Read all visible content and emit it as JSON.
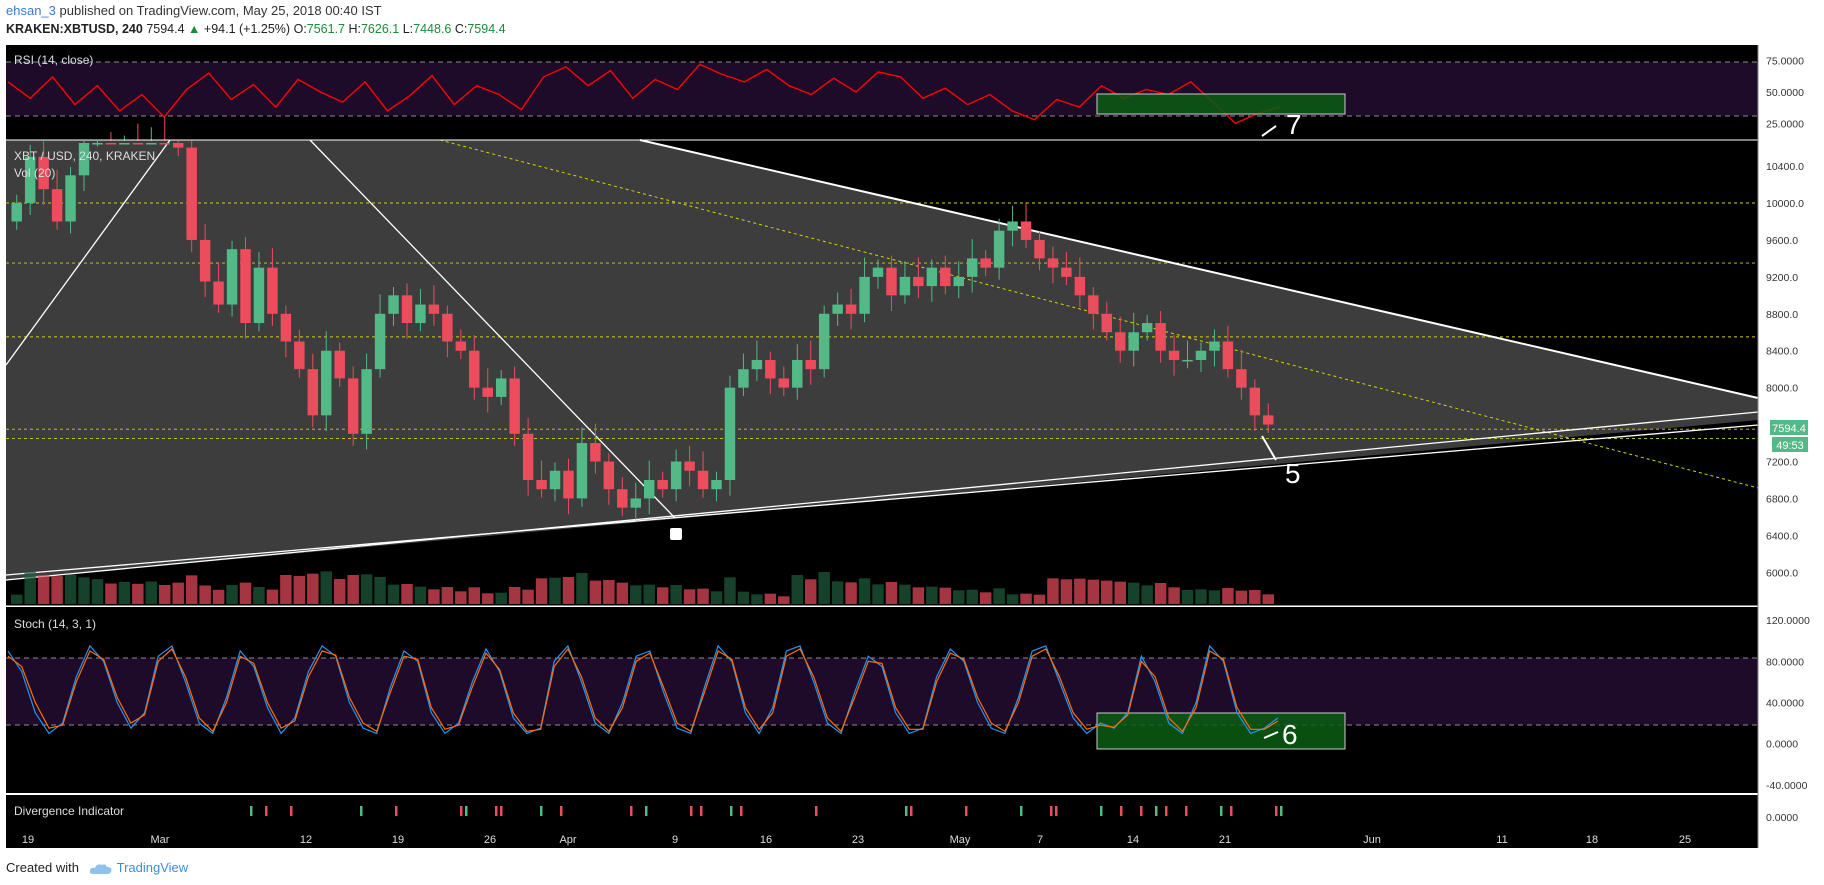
{
  "header": {
    "author": "ehsan_3",
    "published": "published on TradingView.com, May 25, 2018 00:40 IST",
    "symbol": "KRAKEN:XBTUSD, 240",
    "last": "7594.4",
    "change": "+94.1 (+1.25%)",
    "o_label": "O:",
    "o": "7561.7",
    "h_label": "H:",
    "h": "7626.1",
    "l_label": "L:",
    "l": "7448.6",
    "c_label": "C:",
    "c": "7594.4"
  },
  "panes": {
    "rsi_label": "RSI (14, close)",
    "main_label": "XBT / USD, 240, KRAKEN",
    "vol_label": "Vol (20)",
    "stoch_label": "Stoch (14, 3, 1)",
    "div_label": "Divergence Indicator"
  },
  "annotations": {
    "rsi": "7",
    "price": "5",
    "stoch": "6"
  },
  "price_tag": "7594.4",
  "countdown_tag": "49:53",
  "footer": {
    "created": "Created with",
    "brand": "TradingView"
  },
  "colors": {
    "background": "#000000",
    "up": "#53b987",
    "down": "#eb4d5c",
    "rsi_line": "#ff0000",
    "stoch_k": "#2196f3",
    "stoch_d": "#ff6d00",
    "zone": "#0b5d12",
    "tag": "#53b987"
  },
  "chart_data": [
    {
      "type": "line",
      "pane": "RSI (14, close)",
      "y_ticks": [
        "75.0000",
        "50.0000",
        "25.0000"
      ],
      "ylim": [
        15,
        85
      ],
      "bands": [
        70,
        30
      ],
      "series": [
        {
          "values": [
            58,
            45,
            62,
            40,
            55,
            35,
            48,
            30,
            52,
            65,
            44,
            56,
            38,
            60,
            50,
            42,
            58,
            35,
            47,
            63,
            40,
            55,
            48,
            36,
            62,
            70,
            55,
            67,
            45,
            60,
            52,
            72,
            64,
            58,
            68,
            55,
            48,
            61,
            50,
            66,
            62,
            45,
            53,
            40,
            48,
            35,
            28,
            44,
            38,
            55,
            45,
            52,
            48,
            58,
            42,
            25,
            33,
            38
          ]
        }
      ]
    },
    {
      "type": "candlestick",
      "pane": "XBT / USD, 240, KRAKEN",
      "x_ticks": [
        "19",
        "Mar",
        "12",
        "19",
        "26",
        "Apr",
        "9",
        "16",
        "23",
        "May",
        "7",
        "14",
        "21",
        "Jun",
        "11",
        "18",
        "25"
      ],
      "y_ticks": [
        "10400.0",
        "10000.0",
        "9600.0",
        "9200.0",
        "8800.0",
        "8400.0",
        "8000.0",
        "7200.0",
        "6800.0",
        "6400.0",
        "6000.0"
      ],
      "ylim": [
        5700,
        10650
      ],
      "closes": [
        10000,
        10500,
        10150,
        9800,
        10300,
        10700,
        11050,
        10900,
        11200,
        10950,
        11400,
        11100,
        10600,
        9600,
        9150,
        8900,
        9500,
        8700,
        9300,
        8800,
        8500,
        8200,
        7700,
        8400,
        8100,
        7500,
        8200,
        8800,
        9000,
        8700,
        8900,
        8800,
        8500,
        8400,
        8000,
        7900,
        8100,
        7500,
        7000,
        6900,
        7100,
        6800,
        7400,
        7200,
        6900,
        6700,
        6800,
        7000,
        6900,
        7200,
        7100,
        6900,
        7000,
        8000,
        8200,
        8300,
        8100,
        8000,
        8300,
        8200,
        8800,
        8900,
        8800,
        9200,
        9300,
        9000,
        9200,
        9100,
        9300,
        9100,
        9200,
        9400,
        9300,
        9700,
        9800,
        9600,
        9400,
        9300,
        9200,
        9000,
        8800,
        8600,
        8400,
        8600,
        8700,
        8400,
        8300,
        8300,
        8400,
        8500,
        8200,
        8000,
        7700,
        7600
      ],
      "volume_color": "#7a1f2a",
      "last": 7594.4
    },
    {
      "type": "line",
      "pane": "Stoch (14, 3, 1)",
      "y_ticks": [
        "120.0000",
        "80.0000",
        "40.0000",
        "0.0000",
        "-40.0000"
      ],
      "ylim": [
        -45,
        125
      ],
      "bands": [
        80,
        20
      ],
      "series": [
        {
          "name": "%K",
          "values": [
            90,
            70,
            30,
            10,
            20,
            65,
            95,
            80,
            40,
            15,
            30,
            85,
            95,
            60,
            20,
            10,
            45,
            90,
            75,
            35,
            10,
            25,
            70,
            95,
            85,
            40,
            15,
            10,
            55,
            90,
            80,
            30,
            10,
            20,
            60,
            92,
            70,
            25,
            10,
            15,
            80,
            95,
            60,
            20,
            10,
            40,
            85,
            90,
            50,
            15,
            10,
            55,
            95,
            80,
            30,
            10,
            35,
            90,
            95,
            60,
            20,
            10,
            50,
            85,
            75,
            30,
            10,
            15,
            65,
            92,
            80,
            40,
            15,
            10,
            45,
            90,
            95,
            60,
            25,
            10,
            20,
            15,
            30,
            85,
            60,
            20,
            10,
            40,
            95,
            80,
            30,
            10,
            15,
            25
          ]
        },
        {
          "name": "%D",
          "values": [
            85,
            75,
            40,
            15,
            18,
            60,
            90,
            82,
            45,
            20,
            28,
            80,
            92,
            65,
            25,
            12,
            40,
            85,
            78,
            40,
            15,
            22,
            65,
            90,
            86,
            45,
            20,
            12,
            50,
            85,
            82,
            35,
            14,
            18,
            55,
            88,
            72,
            30,
            12,
            14,
            75,
            92,
            65,
            25,
            12,
            35,
            80,
            88,
            55,
            20,
            12,
            50,
            90,
            82,
            35,
            14,
            30,
            85,
            92,
            65,
            25,
            12,
            45,
            80,
            78,
            35,
            14,
            14,
            60,
            88,
            82,
            45,
            20,
            12,
            40,
            85,
            92,
            65,
            30,
            14,
            18,
            16,
            28,
            80,
            65,
            25,
            12,
            35,
            90,
            82,
            35,
            14,
            14,
            22
          ]
        }
      ]
    },
    {
      "type": "bar",
      "pane": "Divergence Indicator",
      "y_ticks": [
        "0.0000"
      ]
    }
  ]
}
